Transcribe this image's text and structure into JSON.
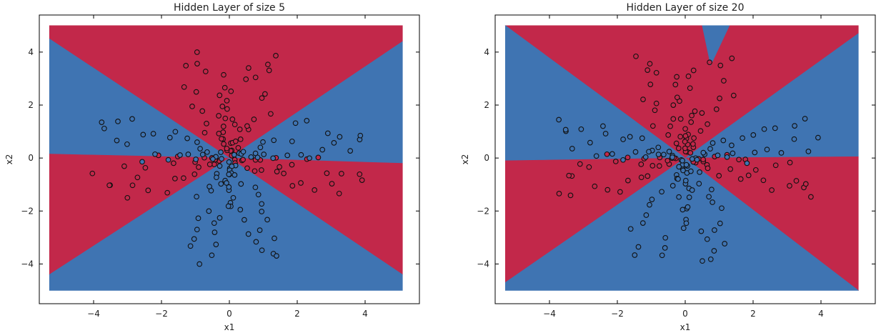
{
  "figure": {
    "colors": {
      "red_region": "#c2284a",
      "blue_region": "#3f74b2",
      "point_edge": "#111111"
    }
  },
  "chart_data": [
    {
      "type": "scatter",
      "title": "Hidden Layer of size 5",
      "xlabel": "x1",
      "ylabel": "x2",
      "xlim": [
        -5.6,
        5.6
      ],
      "ylim": [
        -5.5,
        5.4
      ],
      "xticks": [
        -4,
        -2,
        0,
        2,
        4
      ],
      "yticks": [
        -4,
        -2,
        0,
        2,
        4
      ],
      "xtick_labels": [
        "−4",
        "−2",
        "0",
        "2",
        "4"
      ],
      "ytick_labels": [
        "−4",
        "−2",
        "0",
        "2",
        "4"
      ],
      "grid": false,
      "legend": "none",
      "decision_boundary": {
        "extent": {
          "x": [
            -5.3,
            5.1
          ],
          "y": [
            -5.0,
            5.0
          ]
        },
        "regions": [
          {
            "class": "red",
            "polygon": [
              [
                -5.3,
                5.0
              ],
              [
                5.1,
                5.0
              ],
              [
                5.1,
                4.4
              ],
              [
                0,
                0
              ],
              [
                -5.3,
                4.5
              ]
            ]
          },
          {
            "class": "blue",
            "polygon": [
              [
                -5.3,
                4.5
              ],
              [
                0,
                0
              ],
              [
                -5.3,
                0.15
              ]
            ]
          },
          {
            "class": "blue",
            "polygon": [
              [
                5.1,
                4.4
              ],
              [
                0,
                0
              ],
              [
                5.1,
                -0.2
              ]
            ]
          },
          {
            "class": "red",
            "polygon": [
              [
                -5.3,
                0.15
              ],
              [
                0,
                0
              ],
              [
                -5.3,
                -4.4
              ]
            ]
          },
          {
            "class": "red",
            "polygon": [
              [
                5.1,
                -0.2
              ],
              [
                0,
                0
              ],
              [
                5.1,
                -4.4
              ]
            ]
          },
          {
            "class": "blue",
            "polygon": [
              [
                -5.3,
                -4.4
              ],
              [
                0,
                0
              ],
              [
                5.1,
                -4.4
              ],
              [
                5.1,
                -5.0
              ],
              [
                -5.3,
                -5.0
              ]
            ]
          }
        ]
      },
      "points": {
        "red_arm_directions_deg": [
          75,
          105,
          195,
          345
        ],
        "blue_arm_directions_deg": [
          165,
          15,
          255,
          285
        ],
        "points_per_arm": 25,
        "arm_length": 4.0
      }
    },
    {
      "type": "scatter",
      "title": "Hidden Layer of size 20",
      "xlabel": "x1",
      "ylabel": "x2",
      "xlim": [
        -5.6,
        5.6
      ],
      "ylim": [
        -5.5,
        5.4
      ],
      "xticks": [
        -4,
        -2,
        0,
        2,
        4
      ],
      "yticks": [
        -4,
        -2,
        0,
        2,
        4
      ],
      "xtick_labels": [
        "−4",
        "−2",
        "0",
        "2",
        "4"
      ],
      "ytick_labels": [
        "−4",
        "−2",
        "0",
        "2",
        "4"
      ],
      "grid": false,
      "legend": "none",
      "decision_boundary": {
        "extent": {
          "x": [
            -5.3,
            5.1
          ],
          "y": [
            -5.0,
            5.0
          ]
        },
        "regions": [
          {
            "class": "red",
            "polygon": [
              [
                -5.3,
                5.0
              ],
              [
                5.1,
                5.0
              ],
              [
                5.1,
                4.7
              ],
              [
                0,
                0
              ],
              [
                -5.3,
                5.0
              ]
            ]
          },
          {
            "class": "blue",
            "polygon": [
              [
                -5.3,
                5.0
              ],
              [
                0,
                0
              ],
              [
                -5.3,
                -0.1
              ]
            ]
          },
          {
            "class": "blue",
            "polygon": [
              [
                5.1,
                4.7
              ],
              [
                0,
                0
              ],
              [
                5.1,
                0.05
              ]
            ]
          },
          {
            "class": "red",
            "polygon": [
              [
                -5.3,
                -0.1
              ],
              [
                0,
                0
              ],
              [
                -5.3,
                -4.7
              ]
            ]
          },
          {
            "class": "red",
            "polygon": [
              [
                5.1,
                0.05
              ],
              [
                0,
                0
              ],
              [
                5.1,
                -5.0
              ]
            ]
          },
          {
            "class": "blue",
            "polygon": [
              [
                -5.3,
                -4.7
              ],
              [
                0,
                0
              ],
              [
                5.1,
                -5.0
              ],
              [
                -5.3,
                -5.0
              ]
            ]
          },
          {
            "class": "blue",
            "polygon": [
              [
                0.5,
                5.0
              ],
              [
                1.3,
                5.0
              ],
              [
                0.75,
                3.5
              ]
            ]
          }
        ]
      },
      "points": {
        "red_arm_directions_deg": [
          75,
          105,
          195,
          345
        ],
        "blue_arm_directions_deg": [
          165,
          15,
          255,
          285
        ],
        "points_per_arm": 25,
        "arm_length": 4.0
      }
    }
  ]
}
